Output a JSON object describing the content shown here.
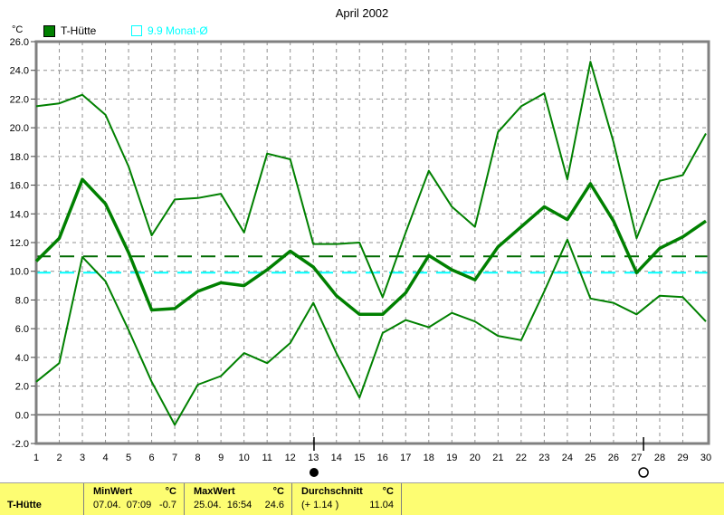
{
  "y_axis_unit": "°C",
  "legend": [
    {
      "label": "T-Hütte",
      "swatch": "filled-green"
    },
    {
      "label": "9.9 Monat-Ø",
      "swatch": "open-cyan"
    }
  ],
  "chart_data": {
    "type": "line",
    "title": "April 2002",
    "ylabel": "°C",
    "ylim": [
      -2,
      26
    ],
    "xlim": [
      1,
      30
    ],
    "grid": true,
    "y_ticks": [
      26,
      24,
      22,
      20,
      18,
      16,
      14,
      12,
      10,
      8,
      6,
      4,
      2,
      0,
      -2
    ],
    "x_ticks": [
      "1",
      "2",
      "3",
      "4",
      "5",
      "6",
      "7",
      "8",
      "9",
      "10",
      "11",
      "12",
      "13",
      "14",
      "15",
      "16",
      "17",
      "18",
      "19",
      "20",
      "21",
      "22",
      "23",
      "24",
      "25",
      "26",
      "27",
      "28",
      "29",
      "30"
    ],
    "series": [
      {
        "key": "max",
        "name": "T-Hütte Tagesmaximum",
        "width": 2,
        "values": [
          21.5,
          21.7,
          22.3,
          20.9,
          17.3,
          12.5,
          15.0,
          15.1,
          15.4,
          12.7,
          18.2,
          17.8,
          11.9,
          11.9,
          12.0,
          8.2,
          12.7,
          17.0,
          14.5,
          13.1,
          19.7,
          21.5,
          22.4,
          16.4,
          24.6,
          19.0,
          12.3,
          16.3,
          16.7,
          19.6
        ]
      },
      {
        "key": "mean",
        "name": "T-Hütte Tagesmittel",
        "width": 3.5,
        "values": [
          10.7,
          12.3,
          16.4,
          14.7,
          11.3,
          7.3,
          7.4,
          8.6,
          9.2,
          9.0,
          10.1,
          11.4,
          10.3,
          8.3,
          7.0,
          7.0,
          8.5,
          11.1,
          10.1,
          9.4,
          11.7,
          13.1,
          14.5,
          13.6,
          16.1,
          13.5,
          9.9,
          11.6,
          12.4,
          13.5
        ]
      },
      {
        "key": "min",
        "name": "T-Hütte Tagesminimum",
        "width": 2,
        "values": [
          2.3,
          3.6,
          11.0,
          9.3,
          5.9,
          2.3,
          -0.7,
          2.1,
          2.7,
          4.3,
          3.6,
          5.0,
          7.8,
          4.3,
          1.2,
          5.7,
          6.6,
          6.1,
          7.1,
          6.5,
          5.5,
          5.2,
          8.6,
          12.2,
          8.1,
          7.8,
          7.0,
          8.3,
          8.2,
          6.5
        ]
      }
    ],
    "reference_lines": [
      {
        "name": "monats-durchschnitt",
        "value": 11.04,
        "color": "#006a00",
        "style": "dashed"
      },
      {
        "name": "monat-avg-9-9",
        "value": 9.9,
        "color": "#00ffff",
        "style": "dashed"
      }
    ],
    "moon_markers": [
      {
        "day": 13.03,
        "phase": "new-moon"
      },
      {
        "day": 27.3,
        "phase": "full-moon"
      }
    ],
    "legend_position": "top-left"
  },
  "status_bar": {
    "series_label": "T-Hütte",
    "min": {
      "header": "MinWert",
      "unit": "°C",
      "datetime": "07.04.  07:09",
      "value": "-0.7"
    },
    "max": {
      "header": "MaxWert",
      "unit": "°C",
      "datetime": "25.04.  16:54",
      "value": "24.6"
    },
    "avg": {
      "header": "Durchschnitt",
      "unit": "°C",
      "deviation": "(+ 1.14 )",
      "value": "11.04"
    }
  },
  "colors": {
    "line_green": "#008000",
    "avg_dash_green": "#006a00",
    "month_avg_cyan": "#00ffff",
    "grid_gray": "#909090",
    "frame_gray": "#808080",
    "statusbar_yellow": "#fdfd72"
  }
}
